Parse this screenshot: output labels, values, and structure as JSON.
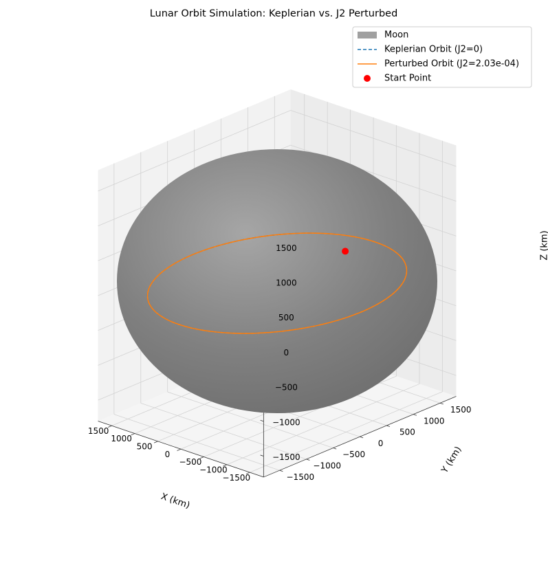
{
  "chart_data": {
    "type": "3d-line-surface",
    "title": "Lunar Orbit Simulation: Keplerian vs. J2 Perturbed",
    "xlabel": "X (km)",
    "ylabel": "Y (km)",
    "zlabel": "Z (km)",
    "x_ticks": [
      {
        "value": -1500,
        "label": "−1500"
      },
      {
        "value": -1000,
        "label": "−1000"
      },
      {
        "value": -500,
        "label": "−500"
      },
      {
        "value": 0,
        "label": "0"
      },
      {
        "value": 500,
        "label": "500"
      },
      {
        "value": 1000,
        "label": "1000"
      },
      {
        "value": 1500,
        "label": "1500"
      }
    ],
    "y_ticks": [
      {
        "value": -1500,
        "label": "−1500"
      },
      {
        "value": -1000,
        "label": "−1000"
      },
      {
        "value": -500,
        "label": "−500"
      },
      {
        "value": 0,
        "label": "0"
      },
      {
        "value": 500,
        "label": "500"
      },
      {
        "value": 1000,
        "label": "1000"
      },
      {
        "value": 1500,
        "label": "1500"
      }
    ],
    "z_ticks": [
      {
        "value": -1500,
        "label": "−1500"
      },
      {
        "value": -1000,
        "label": "−1000"
      },
      {
        "value": -500,
        "label": "−500"
      },
      {
        "value": 0,
        "label": "0"
      },
      {
        "value": 500,
        "label": "500"
      },
      {
        "value": 1000,
        "label": "1000"
      },
      {
        "value": 1500,
        "label": "1500"
      }
    ],
    "xlim": [
      -1800,
      1800
    ],
    "ylim": [
      -1800,
      1800
    ],
    "zlim": [
      -1800,
      1800
    ],
    "grid": true,
    "legend_position": "top-right",
    "moon": {
      "label": "Moon",
      "radius_km": 1737.4,
      "color": "#808080"
    },
    "series": [
      {
        "name": "Keplerian Orbit (J2=0)",
        "style": "dashed",
        "color": "#1f77b4",
        "radius_km": 1837,
        "z_km": 0
      },
      {
        "name": "Perturbed Orbit (J2=2.03e-04)",
        "style": "solid",
        "color": "#ff7f0e",
        "radius_km": 1837,
        "z_km": 0
      }
    ],
    "start_point": {
      "label": "Start Point",
      "x": 1837,
      "y": 0,
      "z": 0,
      "color": "#ff0000"
    }
  }
}
